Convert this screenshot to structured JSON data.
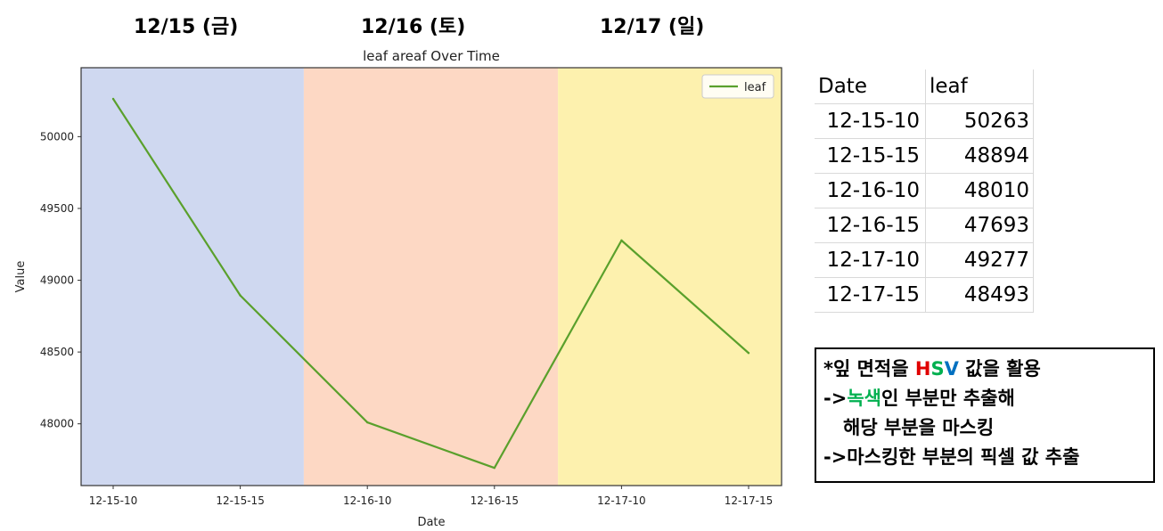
{
  "day_labels": [
    "12/15 (금)",
    "12/16 (토)",
    "12/17 (일)"
  ],
  "chart_data": {
    "type": "line",
    "title": "leaf areaf Over Time",
    "xlabel": "Date",
    "ylabel": "Value",
    "categories": [
      "12-15-10",
      "12-15-15",
      "12-16-10",
      "12-16-15",
      "12-17-10",
      "12-17-15"
    ],
    "series": [
      {
        "name": "leaf",
        "values": [
          50263,
          48894,
          48010,
          47693,
          49277,
          48493
        ],
        "color": "#5aa02c"
      }
    ],
    "yticks": [
      48000,
      48500,
      49000,
      49500,
      50000
    ],
    "ylim": [
      47570,
      50480
    ],
    "legend": "top-right",
    "grid": false,
    "background_bands": [
      {
        "label": "12/15",
        "color": "#cfd8f0"
      },
      {
        "label": "12/16",
        "color": "#fdd8c4"
      },
      {
        "label": "12/17",
        "color": "#fdf1ae"
      }
    ]
  },
  "table": {
    "headers": [
      "Date",
      "leaf"
    ],
    "rows": [
      [
        "12-15-10",
        "50263"
      ],
      [
        "12-15-15",
        "48894"
      ],
      [
        "12-16-10",
        "48010"
      ],
      [
        "12-16-15",
        "47693"
      ],
      [
        "12-17-10",
        "49277"
      ],
      [
        "12-17-15",
        "48493"
      ]
    ]
  },
  "note": {
    "line1_a": "*잎 면적을 ",
    "line1_h": "H",
    "line1_s": "S",
    "line1_v": "V",
    "line1_b": " 값을 활용",
    "line2_a": "->",
    "line2_green": "녹색",
    "line2_b": "인 부분만 추출해",
    "line3": "해당 부분을 마스킹",
    "line4": "->마스킹한 부분의 픽셀 값 추출"
  }
}
